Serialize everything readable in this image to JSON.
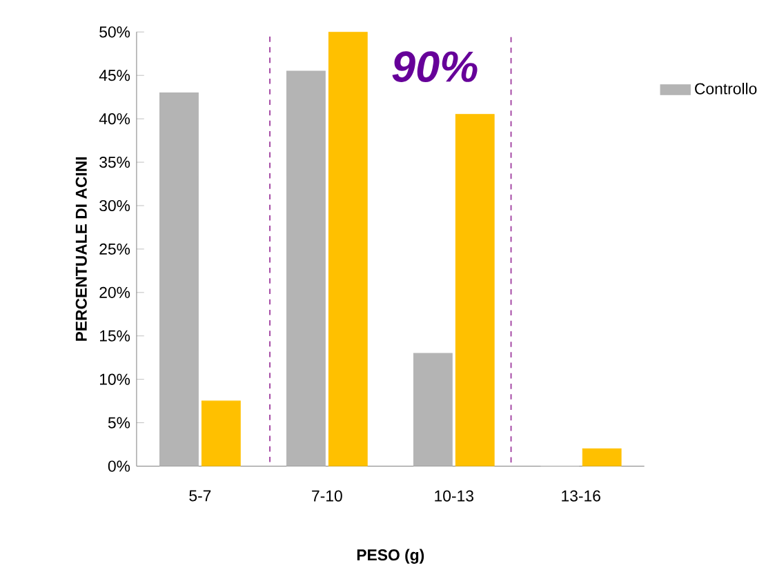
{
  "chart_data": {
    "type": "bar",
    "xlabel": "PESO (g)",
    "ylabel": "PERCENTUALE  DI ACINI",
    "categories": [
      "5-7",
      "7-10",
      "10-13",
      "13-16"
    ],
    "series": [
      {
        "name": "Controllo",
        "color": "#b4b4b4",
        "values": [
          43,
          45.5,
          13,
          0
        ]
      },
      {
        "color": "#ffc000",
        "values": [
          7.5,
          50,
          40.5,
          2
        ]
      }
    ],
    "ylim": [
      0,
      50
    ],
    "yticks": [
      {
        "value": 0,
        "label": "0%"
      },
      {
        "value": 5,
        "label": "5%"
      },
      {
        "value": 10,
        "label": "10%"
      },
      {
        "value": 15,
        "label": "15%"
      },
      {
        "value": 20,
        "label": "20%"
      },
      {
        "value": 25,
        "label": "25%"
      },
      {
        "value": 30,
        "label": "30%"
      },
      {
        "value": 35,
        "label": "35%"
      },
      {
        "value": 40,
        "label": "40%"
      },
      {
        "value": 45,
        "label": "45%"
      },
      {
        "value": 50,
        "label": "50%"
      }
    ],
    "annotations": [
      "90%"
    ],
    "legend": "right",
    "grid": false
  }
}
